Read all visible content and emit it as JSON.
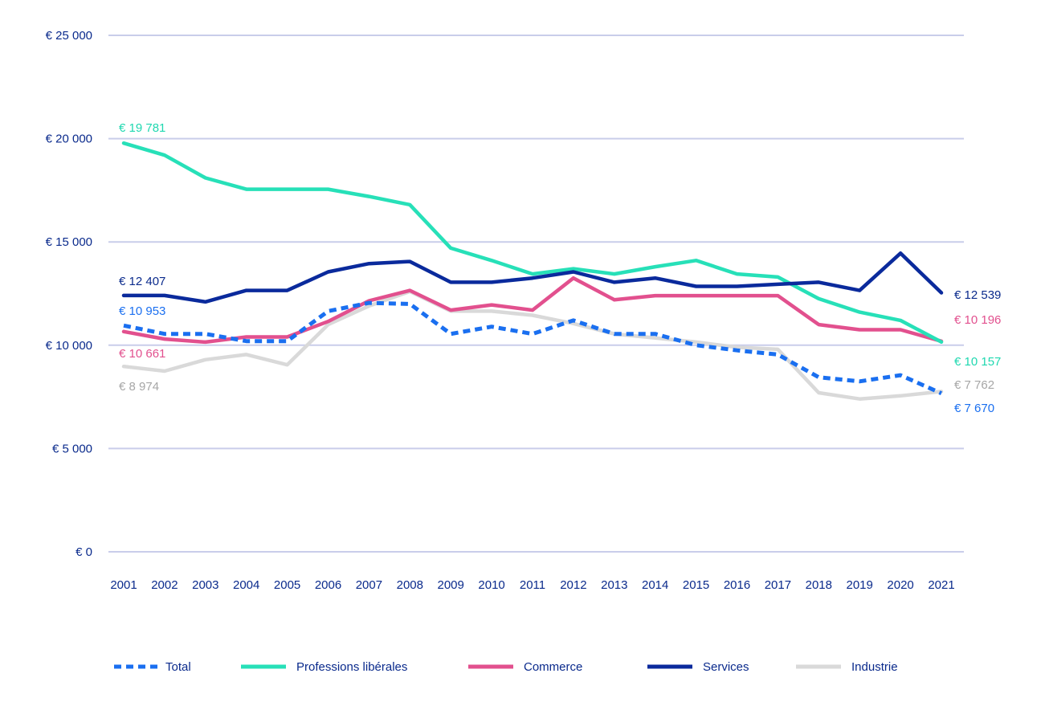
{
  "chart_data": {
    "type": "line",
    "title": "",
    "xlabel": "",
    "ylabel": "",
    "x": [
      "2001",
      "2002",
      "2003",
      "2004",
      "2005",
      "2006",
      "2007",
      "2008",
      "2009",
      "2010",
      "2011",
      "2012",
      "2013",
      "2014",
      "2015",
      "2016",
      "2017",
      "2018",
      "2019",
      "2020",
      "2021"
    ],
    "ylim": [
      0,
      25000
    ],
    "y_ticks": [
      0,
      5000,
      10000,
      15000,
      20000,
      25000
    ],
    "y_tick_labels": [
      "€ 0",
      "€ 5 000",
      "€ 10 000",
      "€ 15 000",
      "€ 20 000",
      "€ 25 000"
    ],
    "grid": true,
    "legend_position": "bottom",
    "series": [
      {
        "name": "Industrie",
        "color": "#d9d9d9",
        "dash": false,
        "values": [
          8974,
          8750,
          9300,
          9550,
          9050,
          11000,
          11900,
          12600,
          11650,
          11650,
          11450,
          11050,
          10550,
          10350,
          10150,
          9900,
          9800,
          7700,
          7400,
          7550,
          7762
        ],
        "start_label": "€ 8 974",
        "end_label": "€ 7 762"
      },
      {
        "name": "Commerce",
        "color": "#e2508e",
        "dash": false,
        "values": [
          10661,
          10300,
          10150,
          10400,
          10400,
          11150,
          12150,
          12650,
          11700,
          11950,
          11700,
          13250,
          12200,
          12400,
          12400,
          12400,
          12400,
          11000,
          10750,
          10750,
          10196
        ],
        "start_label": "€ 10 661",
        "end_label": "€ 10 196"
      },
      {
        "name": "Professions libérales",
        "color": "#27e0b8",
        "dash": false,
        "values": [
          19781,
          19200,
          18100,
          17550,
          17550,
          17550,
          17200,
          16800,
          14700,
          14100,
          13450,
          13700,
          13450,
          13800,
          14100,
          13450,
          13300,
          12250,
          11600,
          11200,
          10157
        ],
        "start_label": "€ 19 781",
        "end_label": "€ 10 157"
      },
      {
        "name": "Services",
        "color": "#0a2a9c",
        "dash": false,
        "values": [
          12407,
          12407,
          12100,
          12650,
          12650,
          13550,
          13950,
          14050,
          13050,
          13050,
          13250,
          13550,
          13050,
          13250,
          12850,
          12850,
          12950,
          13050,
          12650,
          14450,
          12539
        ],
        "start_label": "€ 12 407",
        "end_label": "€ 12 539"
      },
      {
        "name": "Total",
        "color": "#1a6ff0",
        "dash": true,
        "values": [
          10953,
          10550,
          10550,
          10200,
          10200,
          11650,
          12050,
          12000,
          10550,
          10900,
          10550,
          11200,
          10550,
          10550,
          10000,
          9750,
          9550,
          8450,
          8250,
          8550,
          7670
        ],
        "start_label": "€ 10 953",
        "end_label": "€ 7 670"
      }
    ],
    "legend": [
      "Total",
      "Professions libérales",
      "Commerce",
      "Services",
      "Industrie"
    ]
  }
}
